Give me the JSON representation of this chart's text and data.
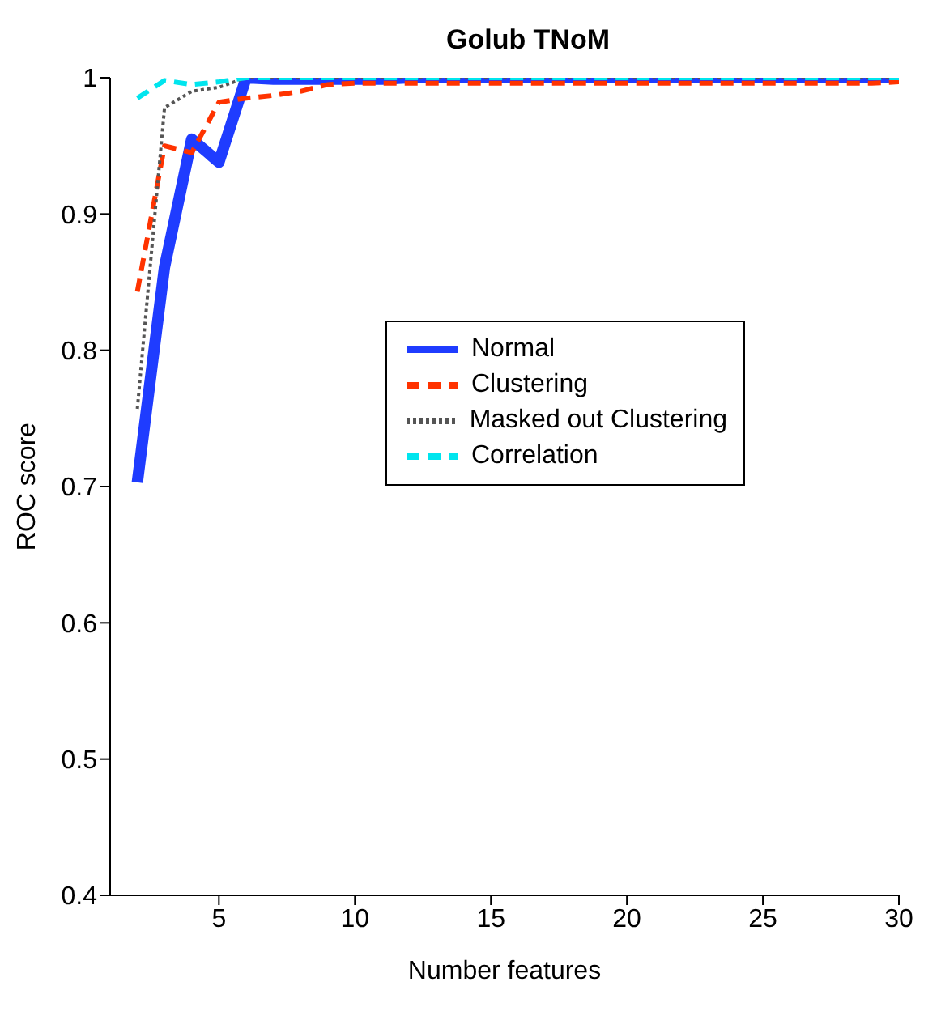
{
  "chart_data": {
    "type": "line",
    "title": "Golub TNoM",
    "xlabel": "Number features",
    "ylabel": "ROC score",
    "x": [
      2,
      3,
      4,
      5,
      6,
      7,
      8,
      9,
      10,
      11,
      12,
      13,
      14,
      15,
      16,
      17,
      18,
      19,
      20,
      21,
      22,
      23,
      24,
      25,
      26,
      27,
      28,
      29,
      30
    ],
    "xlim": [
      1,
      30
    ],
    "xticks": [
      5,
      10,
      15,
      20,
      25,
      30
    ],
    "ylim": [
      0.4,
      1
    ],
    "yticks": [
      0.4,
      0.5,
      0.6,
      0.7,
      0.8,
      0.9,
      1
    ],
    "grid": false,
    "legend": "right",
    "marker": "none",
    "series": [
      {
        "name": "Normal",
        "color": "#1f3cff",
        "line_style": "solid",
        "values": [
          0.703,
          0.861,
          0.955,
          0.938,
          1,
          0.999,
          0.999,
          0.999,
          0.999,
          0.999,
          1,
          1,
          1,
          1,
          1,
          1,
          1,
          1,
          1,
          1,
          1,
          1,
          1,
          1,
          1,
          1,
          1,
          1,
          1
        ]
      },
      {
        "name": "Clustering",
        "color": "#ff3300",
        "line_style": "dashed",
        "values": [
          0.843,
          0.95,
          0.945,
          0.982,
          0.985,
          0.987,
          0.99,
          0.995,
          0.996,
          0.996,
          0.996,
          0.996,
          0.996,
          0.996,
          0.996,
          0.996,
          0.996,
          0.996,
          0.996,
          0.996,
          0.996,
          0.996,
          0.996,
          0.996,
          0.996,
          0.996,
          0.996,
          0.996,
          0.997
        ]
      },
      {
        "name": "Masked out Clustering",
        "color": "#555555",
        "line_style": "dotted",
        "values": [
          0.757,
          0.978,
          0.99,
          0.993,
          1,
          1,
          1,
          1,
          1,
          1,
          1,
          1,
          1,
          1,
          1,
          1,
          1,
          1,
          1,
          1,
          1,
          1,
          1,
          1,
          1,
          1,
          1,
          1,
          1
        ]
      },
      {
        "name": "Correlation",
        "color": "#00e5ee",
        "line_style": "dashed",
        "values": [
          0.985,
          0.998,
          0.995,
          0.997,
          1,
          1,
          1,
          1,
          1,
          1,
          1,
          1,
          1,
          1,
          1,
          1,
          1,
          1,
          1,
          1,
          1,
          1,
          1,
          1,
          1,
          1,
          1,
          1,
          1
        ]
      }
    ]
  }
}
